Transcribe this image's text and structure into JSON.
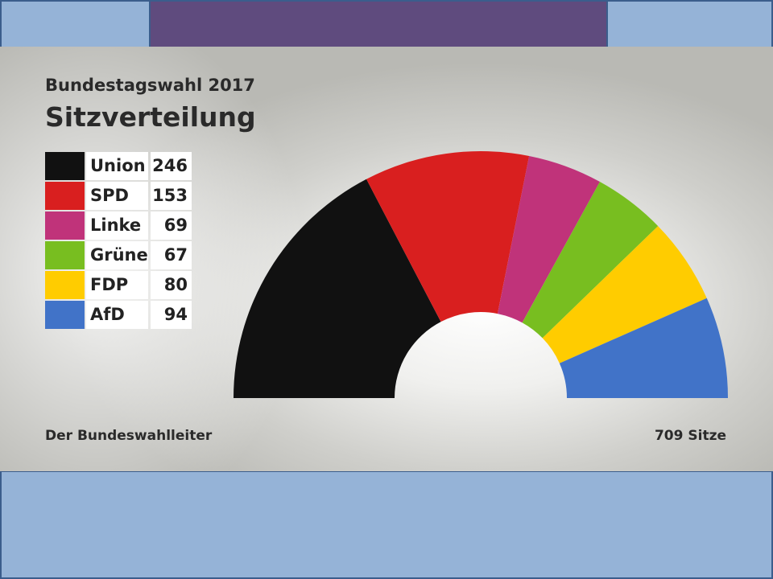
{
  "header": {
    "subtitle": "Bundestagswahl 2017",
    "title": "Sitzverteilung"
  },
  "footer": {
    "source": "Der Bundeswahlleiter",
    "total": "709 Sitze"
  },
  "chart_data": {
    "type": "pie",
    "variant": "parliament-semicircle",
    "subtitle": "Bundestagswahl 2017",
    "title": "Sitzverteilung",
    "total_label": "709 Sitze",
    "categories": [
      "Union",
      "SPD",
      "Linke",
      "Grüne",
      "FDP",
      "AfD"
    ],
    "values": [
      246,
      153,
      69,
      67,
      80,
      94
    ],
    "colors": [
      "#111111",
      "#d91f1f",
      "#c0337a",
      "#78be20",
      "#ffcc00",
      "#4173c8"
    ],
    "legend": "top-left"
  }
}
